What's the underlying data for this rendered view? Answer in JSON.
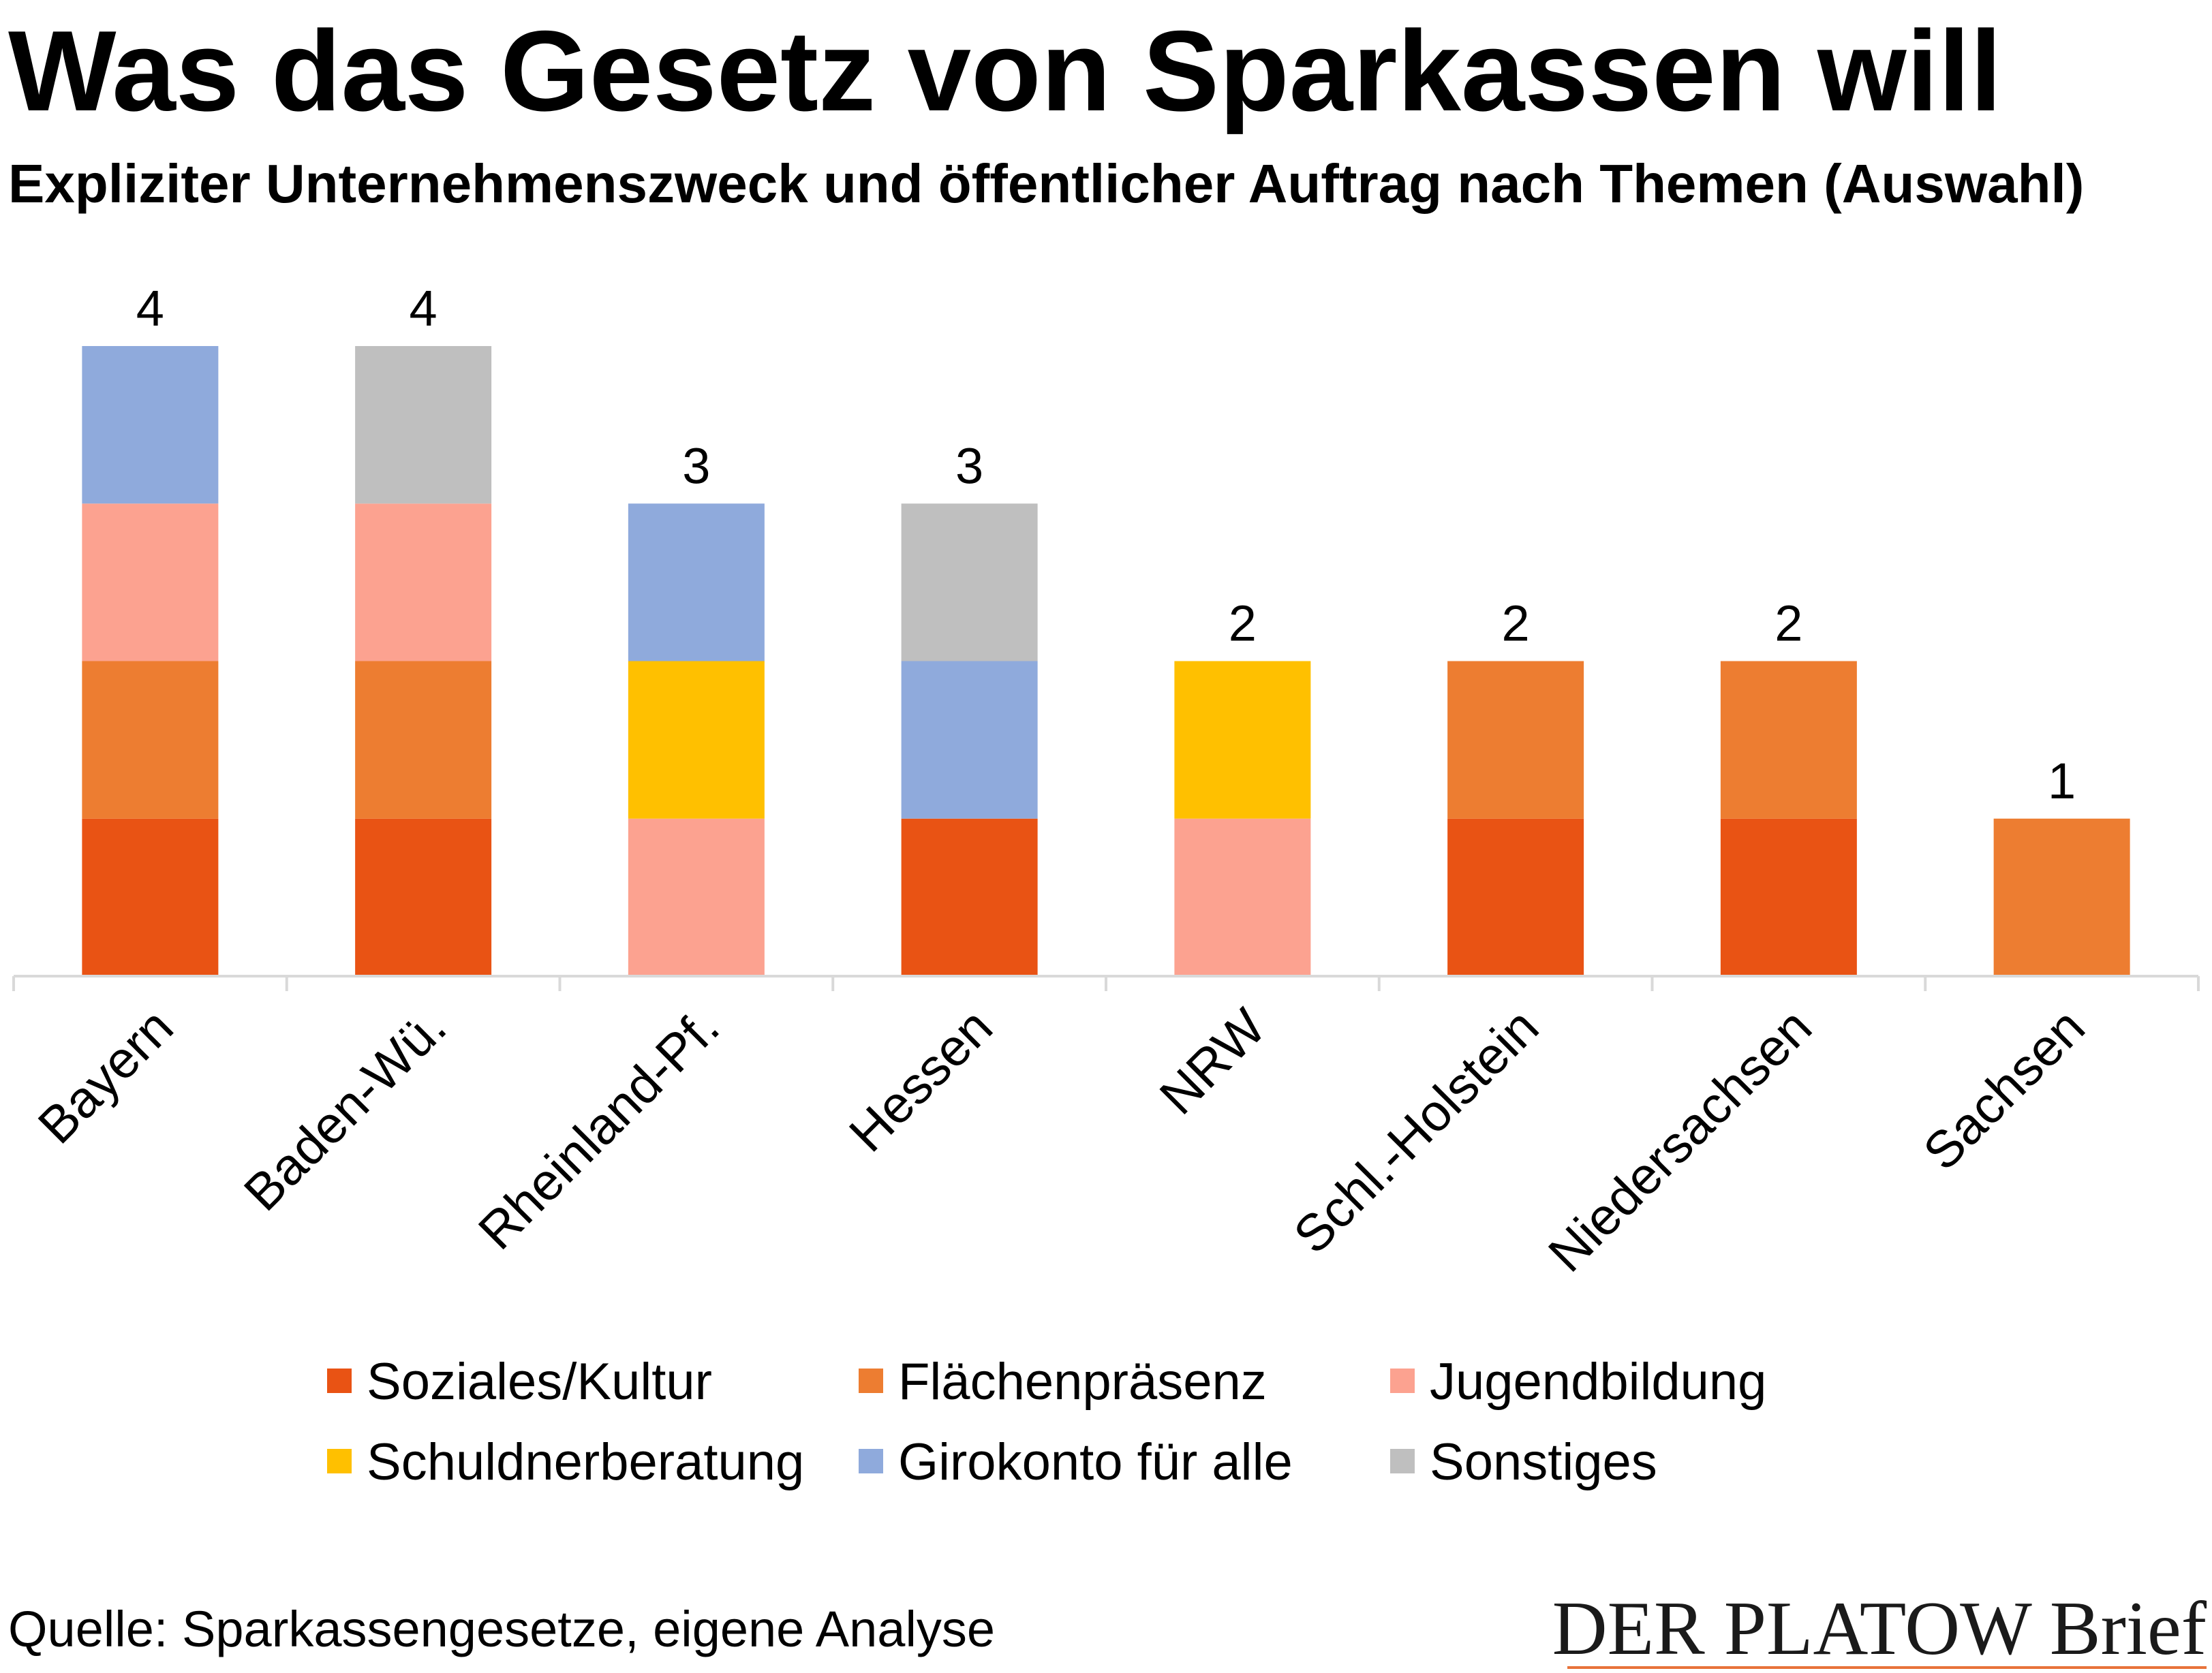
{
  "title": "Was das Gesetz von Sparkassen will",
  "subtitle": "Expliziter Unternehmenszweck und öffentlicher Auftrag nach Themen (Auswahl)",
  "source": "Quelle: Sparkassengesetze, eigene Analyse",
  "brand": "DER PLATOW Brief",
  "colors": {
    "brand_rule": "#E8733A",
    "axis": "#D9D9D9"
  },
  "chart_data": {
    "type": "bar",
    "stacked": true,
    "categories": [
      "Bayern",
      "Baden-Wü.",
      "Rheinland-Pf.",
      "Hessen",
      "NRW",
      "Schl.-Holstein",
      "Niedersachsen",
      "Sachsen"
    ],
    "totals": [
      4,
      4,
      3,
      3,
      2,
      2,
      2,
      1
    ],
    "series": [
      {
        "name": "Soziales/Kultur",
        "color": "#E95314",
        "values": [
          1,
          1,
          0,
          1,
          0,
          1,
          1,
          0
        ]
      },
      {
        "name": "Flächenpräsenz",
        "color": "#ED7D31",
        "values": [
          1,
          1,
          0,
          0,
          0,
          1,
          1,
          1
        ]
      },
      {
        "name": "Jugendbildung",
        "color": "#FCA290",
        "values": [
          1,
          1,
          1,
          0,
          1,
          0,
          0,
          0
        ]
      },
      {
        "name": "Schuldnerberatung",
        "color": "#FFC000",
        "values": [
          0,
          0,
          1,
          0,
          1,
          0,
          0,
          0
        ]
      },
      {
        "name": "Girokonto für alle",
        "color": "#8FAADC",
        "values": [
          1,
          0,
          1,
          1,
          0,
          0,
          0,
          0
        ]
      },
      {
        "name": "Sonstiges",
        "color": "#BFBFBF",
        "values": [
          0,
          1,
          0,
          1,
          0,
          0,
          0,
          0
        ]
      }
    ],
    "ylim": [
      0,
      4
    ],
    "grid": false,
    "legend_position": "bottom",
    "data_labels": "totals"
  }
}
